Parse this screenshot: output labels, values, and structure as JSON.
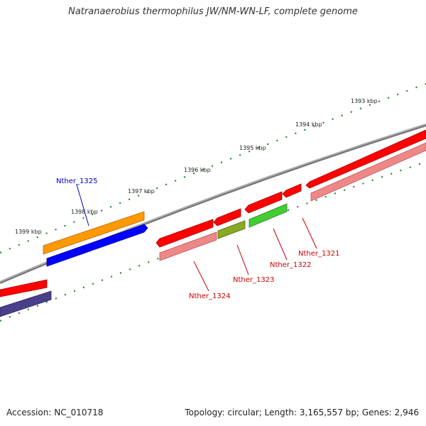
{
  "header": {
    "title": "Natranaerobius thermophilus JW/NM-WN-LF, complete genome"
  },
  "footer": {
    "accession": "Accession: NC_010718",
    "topology": "Topology: circular; Length: 3,165,557 bp; Genes: 2,946"
  },
  "ruler": {
    "labels": [
      "1393 kbp",
      "1394 kbp",
      "1395 kbp",
      "1396 kbp",
      "1397 kbp",
      "1398 kbp",
      "1399 kbp"
    ]
  },
  "genes": [
    {
      "name": "Nther_1321",
      "color": "#cc0000"
    },
    {
      "name": "Nther_1322",
      "color": "#cc0000"
    },
    {
      "name": "Nther_1323",
      "color": "#cc0000"
    },
    {
      "name": "Nther_1324",
      "color": "#cc0000"
    },
    {
      "name": "Nther_1325",
      "color": "#0000cc"
    }
  ],
  "colors": {
    "backbone": "#888888",
    "tick": "#1a7a1a",
    "forward_cds": "#ff0000",
    "forward_cds_shadow": "#ee8888",
    "rna_orange": "#ff9900",
    "rna_blue": "#0000ff",
    "green_cds": "#44cc33",
    "olive_cds": "#88aa22",
    "purple_cds": "#4a3f8a"
  }
}
